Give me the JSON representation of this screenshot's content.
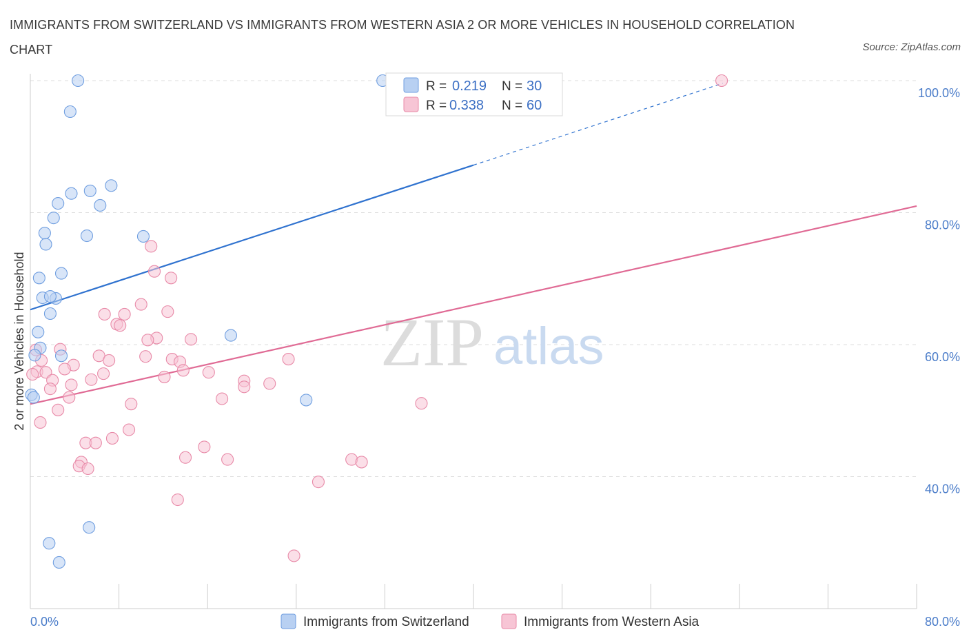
{
  "header": {
    "title": "IMMIGRANTS FROM SWITZERLAND VS IMMIGRANTS FROM WESTERN ASIA 2 OR MORE VEHICLES IN HOUSEHOLD CORRELATION CHART",
    "source": "Source: ZipAtlas.com"
  },
  "watermark": {
    "zip": "ZIP",
    "atlas": "atlas"
  },
  "colors": {
    "blue_fill": "#b8d0f2",
    "blue_stroke": "#6f9ee0",
    "blue_line": "#2f72cf",
    "pink_fill": "#f7c5d5",
    "pink_stroke": "#e88aa8",
    "pink_line": "#e06b95",
    "grid": "#dddddd",
    "tick_text": "#4a7cc9"
  },
  "chart_data": {
    "type": "scatter",
    "title": "IMMIGRANTS FROM SWITZERLAND VS IMMIGRANTS FROM WESTERN ASIA 2 OR MORE VEHICLES IN HOUSEHOLD CORRELATION CHART",
    "xlabel": "",
    "ylabel": "2 or more Vehicles in Household",
    "xlim": [
      0,
      80
    ],
    "ylim": [
      20,
      100
    ],
    "x_tick_labels": [
      "0.0%",
      "80.0%"
    ],
    "y_ticks": [
      {
        "value": 100,
        "label": "100.0%"
      },
      {
        "value": 80,
        "label": "80.0%"
      },
      {
        "value": 60,
        "label": "60.0%"
      },
      {
        "value": 40,
        "label": "40.0%"
      }
    ],
    "grid": true,
    "legend_position": "top-center",
    "series": [
      {
        "name": "Immigrants from Switzerland",
        "color": "blue",
        "stats": {
          "r_label": "R =",
          "r": "0.219",
          "n_label": "N =",
          "n": "30"
        },
        "trend": {
          "x0": 0,
          "y0": 65.3,
          "x1": 40,
          "y1": 87.2,
          "dash_x1": 62.5,
          "dash_y1": 99.6
        },
        "points": [
          [
            4.3,
            100
          ],
          [
            31.8,
            100
          ],
          [
            3.6,
            95.3
          ],
          [
            7.3,
            84.1
          ],
          [
            5.4,
            83.3
          ],
          [
            3.7,
            82.9
          ],
          [
            2.5,
            81.4
          ],
          [
            6.3,
            81.1
          ],
          [
            2.1,
            79.2
          ],
          [
            1.3,
            76.9
          ],
          [
            5.1,
            76.5
          ],
          [
            10.2,
            76.4
          ],
          [
            1.4,
            75.2
          ],
          [
            2.8,
            70.8
          ],
          [
            0.8,
            70.1
          ],
          [
            1.1,
            67.1
          ],
          [
            2.3,
            67.0
          ],
          [
            1.8,
            67.3
          ],
          [
            1.8,
            64.7
          ],
          [
            0.7,
            61.9
          ],
          [
            18.1,
            61.4
          ],
          [
            0.9,
            59.5
          ],
          [
            2.8,
            58.3
          ],
          [
            0.4,
            58.4
          ],
          [
            0.1,
            52.4
          ],
          [
            0.3,
            52.0
          ],
          [
            24.9,
            51.6
          ],
          [
            5.3,
            32.3
          ],
          [
            1.7,
            29.9
          ],
          [
            2.6,
            27.0
          ]
        ]
      },
      {
        "name": "Immigrants from Western Asia",
        "color": "pink",
        "stats": {
          "r_label": "R =",
          "r": "0.338",
          "n_label": "N =",
          "n": "60"
        },
        "trend": {
          "x0": 0,
          "y0": 51.0,
          "x1": 80,
          "y1": 81.0
        },
        "points": [
          [
            62.4,
            100
          ],
          [
            42.6,
            100
          ],
          [
            10.9,
            74.9
          ],
          [
            11.2,
            71.1
          ],
          [
            12.7,
            70.1
          ],
          [
            10.0,
            66.1
          ],
          [
            12.4,
            65.0
          ],
          [
            6.7,
            64.6
          ],
          [
            8.5,
            64.6
          ],
          [
            7.8,
            63.1
          ],
          [
            8.1,
            62.9
          ],
          [
            11.4,
            61.0
          ],
          [
            10.6,
            60.7
          ],
          [
            14.5,
            60.8
          ],
          [
            2.7,
            59.3
          ],
          [
            0.5,
            59.2
          ],
          [
            6.2,
            58.3
          ],
          [
            10.4,
            58.2
          ],
          [
            23.3,
            57.8
          ],
          [
            7.1,
            57.6
          ],
          [
            12.8,
            57.8
          ],
          [
            13.5,
            57.4
          ],
          [
            1.0,
            57.6
          ],
          [
            3.9,
            56.9
          ],
          [
            0.6,
            55.9
          ],
          [
            3.1,
            56.3
          ],
          [
            1.4,
            55.8
          ],
          [
            6.6,
            55.6
          ],
          [
            13.8,
            56.1
          ],
          [
            16.1,
            55.8
          ],
          [
            12.1,
            55.1
          ],
          [
            5.5,
            54.7
          ],
          [
            2.0,
            54.6
          ],
          [
            19.3,
            54.5
          ],
          [
            21.6,
            54.1
          ],
          [
            19.3,
            53.6
          ],
          [
            3.7,
            53.9
          ],
          [
            1.8,
            53.3
          ],
          [
            3.5,
            52.0
          ],
          [
            17.3,
            51.8
          ],
          [
            35.3,
            51.1
          ],
          [
            9.1,
            51.0
          ],
          [
            2.5,
            50.1
          ],
          [
            0.9,
            48.2
          ],
          [
            8.9,
            47.1
          ],
          [
            7.4,
            45.8
          ],
          [
            5.0,
            45.1
          ],
          [
            5.9,
            45.1
          ],
          [
            15.7,
            44.5
          ],
          [
            4.6,
            42.2
          ],
          [
            14.0,
            42.9
          ],
          [
            17.8,
            42.6
          ],
          [
            29.0,
            42.6
          ],
          [
            29.9,
            42.2
          ],
          [
            4.4,
            41.6
          ],
          [
            5.2,
            41.2
          ],
          [
            26.0,
            39.2
          ],
          [
            13.3,
            36.5
          ],
          [
            23.8,
            28.0
          ],
          [
            0.2,
            55.5
          ]
        ]
      }
    ]
  },
  "legend": {
    "bottom": [
      {
        "label": "Immigrants from Switzerland"
      },
      {
        "label": "Immigrants from Western Asia"
      }
    ]
  }
}
